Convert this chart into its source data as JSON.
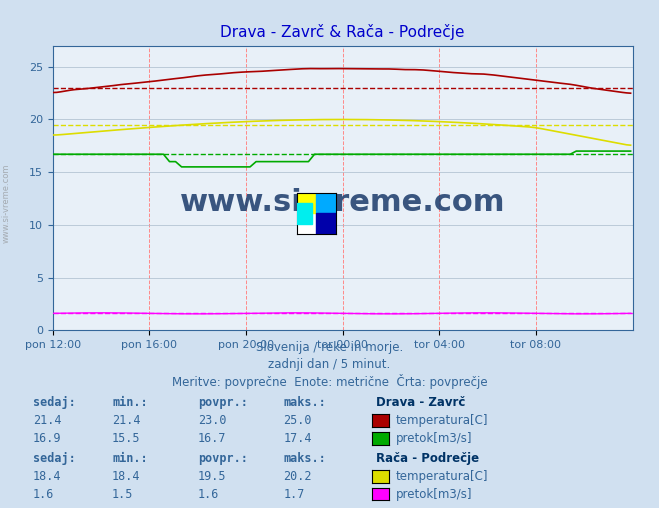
{
  "title": "Drava - Zavrč & Rača - Podrečje",
  "subtitle1": "Slovenija / reke in morje.",
  "subtitle2": "zadnji dan / 5 minut.",
  "subtitle3": "Meritve: povprečne  Enote: metrične  Črta: povprečje",
  "xlabel_ticks": [
    "pon 12:00",
    "pon 16:00",
    "pon 20:00",
    "tor 00:00",
    "tor 04:00",
    "tor 08:00"
  ],
  "ylim": [
    0,
    27
  ],
  "yticks": [
    0,
    5,
    10,
    15,
    20,
    25
  ],
  "background_color": "#d0e0f0",
  "plot_bg_color": "#e8f0f8",
  "grid_color_major": "#ff9999",
  "grid_color_minor": "#ccddee",
  "drava_temp_color": "#aa0000",
  "drava_pretok_color": "#00aa00",
  "raca_temp_color": "#dddd00",
  "raca_pretok_color": "#ff00ff",
  "avg_drava_temp": 23.0,
  "avg_drava_pretok": 16.7,
  "avg_raca_temp": 19.5,
  "avg_raca_pretok": 1.6,
  "max_drava_temp": 25.0,
  "min_drava_temp": 21.4,
  "max_drava_pretok": 17.4,
  "min_drava_pretok": 15.5,
  "max_raca_temp": 20.2,
  "min_raca_temp": 18.4,
  "max_raca_pretok": 1.7,
  "min_raca_pretok": 1.5,
  "sed_drava_temp": 21.4,
  "sed_drava_pretok": 16.9,
  "sed_raca_temp": 18.4,
  "sed_raca_pretok": 1.6,
  "n_points": 288,
  "watermark": "www.si-vreme.com",
  "label_drava": "Drava - Zavrč",
  "label_raca": "Rača - Podrečje",
  "label_temp": "temperatura[C]",
  "label_pretok": "pretok[m3/s]",
  "table_headers": [
    "sedaj:",
    "min.:",
    "povpr.:",
    "maks.:"
  ],
  "title_color": "#0000cc",
  "text_color": "#336699",
  "label_bold_color": "#003366"
}
